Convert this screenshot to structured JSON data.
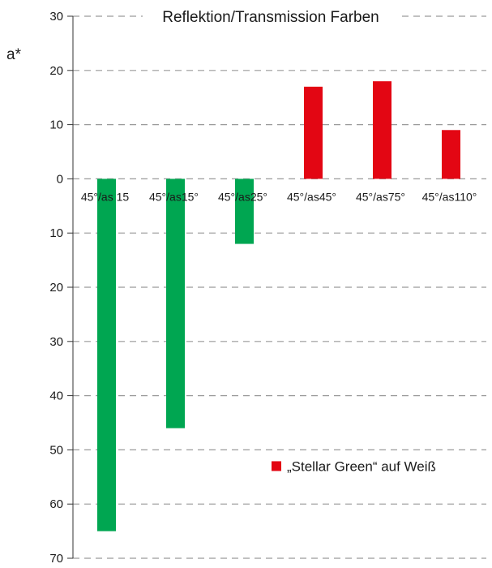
{
  "chart_data": {
    "type": "bar",
    "title": "Reflektion/Transmission Farben",
    "ylabel": "a*",
    "xlabel": "",
    "categories": [
      "45°/as 15",
      "45°/as15°",
      "45°/as25°",
      "45°/as45°",
      "45°/as75°",
      "45°/as110°"
    ],
    "values": [
      -65,
      -46,
      -12,
      17,
      18,
      9
    ],
    "ylim": [
      -70,
      30
    ],
    "yticks": [
      30,
      20,
      10,
      0,
      -10,
      -20,
      -30,
      -40,
      -50,
      -60,
      -70
    ],
    "ytick_labels": [
      "30",
      "20",
      "10",
      "0",
      "10",
      "20",
      "30",
      "40",
      "50",
      "60",
      "70"
    ],
    "grid": true,
    "legend": {
      "label": "„Stellar Green“ auf Weiß",
      "placement": "lower-right",
      "color": "#e30613"
    },
    "colors": {
      "positive": "#e30613",
      "negative": "#00a651",
      "grid": "#9a9a9a",
      "axis": "#333333"
    }
  }
}
